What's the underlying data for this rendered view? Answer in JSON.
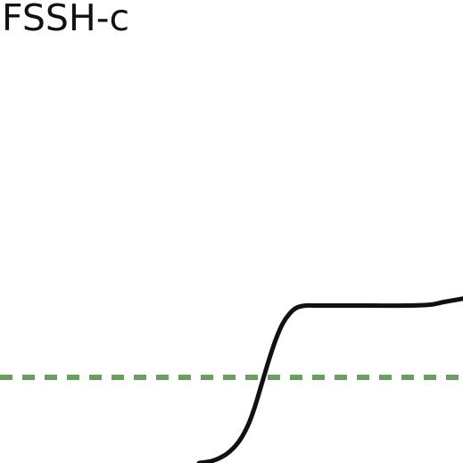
{
  "chart_data": {
    "type": "line",
    "title": "FSSH-c",
    "xlabel": "",
    "ylabel": "",
    "xlim": [
      0,
      1
    ],
    "ylim": [
      0,
      1
    ],
    "grid": false,
    "reference_line": {
      "y": 0.185,
      "style": "dashed",
      "color": "#6a9e63"
    },
    "series": [
      {
        "color": "#111111",
        "x": [
          0.43,
          0.46,
          0.49,
          0.515,
          0.535,
          0.55,
          0.565,
          0.58,
          0.595,
          0.61,
          0.625,
          0.64,
          0.66,
          0.68,
          0.72,
          0.8,
          0.88,
          0.93,
          0.96,
          1.0
        ],
        "y": [
          0.0,
          0.005,
          0.02,
          0.045,
          0.08,
          0.12,
          0.17,
          0.22,
          0.265,
          0.3,
          0.322,
          0.335,
          0.34,
          0.34,
          0.34,
          0.34,
          0.34,
          0.342,
          0.348,
          0.355
        ]
      }
    ]
  }
}
